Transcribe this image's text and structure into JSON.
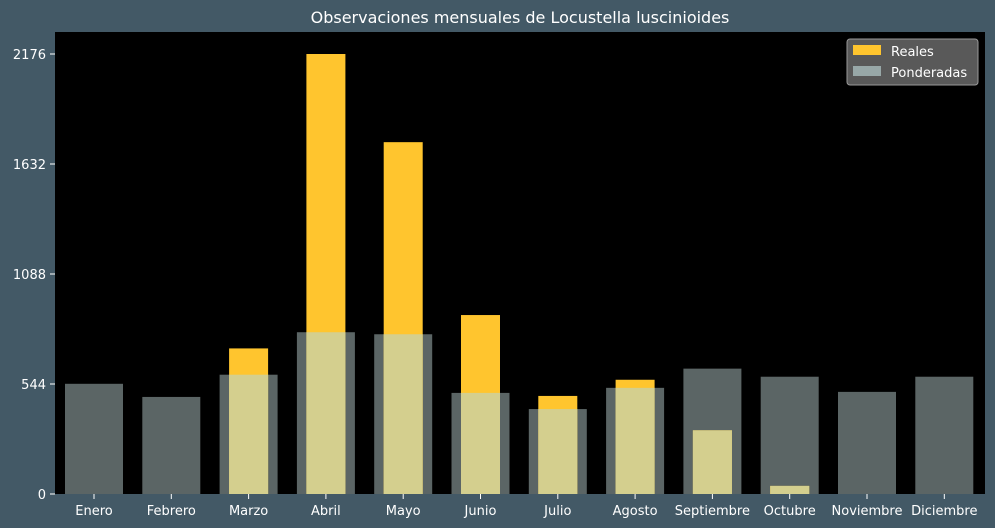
{
  "chart_data": {
    "type": "bar",
    "title": "Observaciones mensuales de Locustella luscinioides",
    "xlabel": "",
    "ylabel": "",
    "categories": [
      "Enero",
      "Febrero",
      "Marzo",
      "Abril",
      "Mayo",
      "Junio",
      "Julio",
      "Agosto",
      "Septiembre",
      "Octubre",
      "Noviembre",
      "Diciembre"
    ],
    "yticks": [
      "0",
      "544",
      "1088",
      "1632",
      "2176"
    ],
    "ylim": [
      0,
      2176
    ],
    "grid": false,
    "legend_position": "top-right",
    "series": [
      {
        "name": "Reales",
        "color": "#ffc52e",
        "values": [
          0,
          0,
          720,
          2176,
          1740,
          885,
          485,
          565,
          315,
          40,
          0,
          0
        ]
      },
      {
        "name": "Ponderadas",
        "color": "#98a8a8",
        "values": [
          545,
          480,
          590,
          800,
          790,
          500,
          420,
          525,
          620,
          580,
          505,
          580
        ]
      }
    ],
    "colors": {
      "background": "#435966",
      "plot_background": "#000000"
    }
  }
}
